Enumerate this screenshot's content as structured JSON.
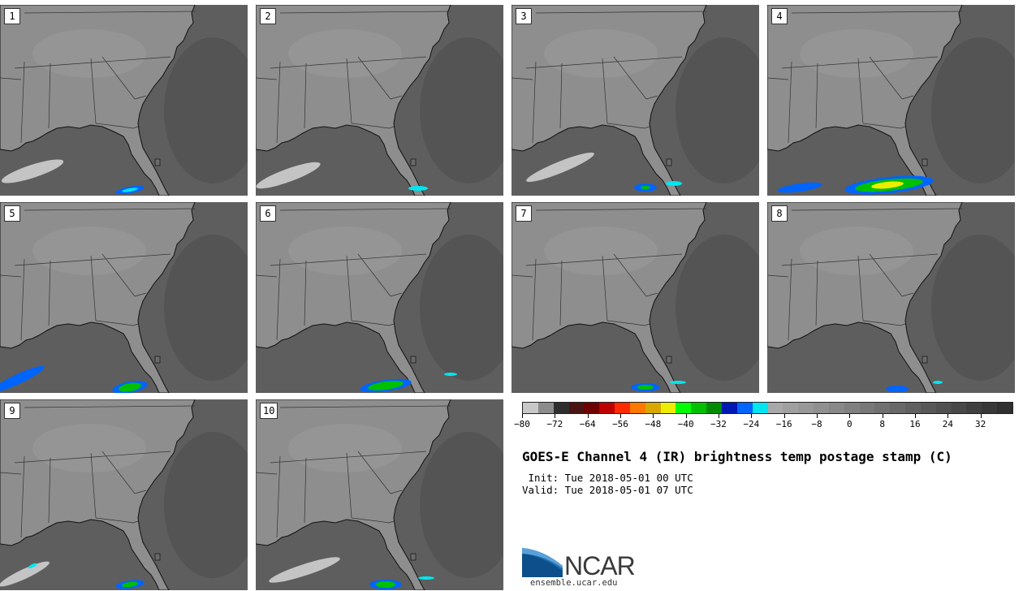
{
  "figure": {
    "title": "GOES-E Channel 4 (IR) brightness temp postage stamp (C)",
    "init_text": " Init: Tue 2018-05-01 00 UTC",
    "valid_text": "Valid: Tue 2018-05-01 07 UTC"
  },
  "panels": [
    {
      "label": "1"
    },
    {
      "label": "2"
    },
    {
      "label": "3"
    },
    {
      "label": "4"
    },
    {
      "label": "5"
    },
    {
      "label": "6"
    },
    {
      "label": "7"
    },
    {
      "label": "8"
    },
    {
      "label": "9"
    },
    {
      "label": "10"
    }
  ],
  "colorbar": {
    "min": -80,
    "max": 40,
    "tick_labels": [
      "-80",
      "-72",
      "-64",
      "-56",
      "-48",
      "-40",
      "-32",
      "-24",
      "-16",
      "-8",
      "0",
      "8",
      "16",
      "24",
      "32"
    ],
    "colors": [
      "#c8c8c8",
      "#8c8c8c",
      "#2e2e2e",
      "#4a1414",
      "#6e0000",
      "#be0000",
      "#ff2a00",
      "#ff7800",
      "#d8a800",
      "#ecec00",
      "#00ff00",
      "#00c000",
      "#008c00",
      "#0018b4",
      "#0064ff",
      "#00e6f0",
      "#a8a8a8",
      "#a0a0a0",
      "#989898",
      "#909090",
      "#888888",
      "#808080",
      "#787878",
      "#707070",
      "#686868",
      "#606060",
      "#585858",
      "#505050",
      "#484848",
      "#404040",
      "#383838",
      "#303030"
    ]
  },
  "logo": {
    "wordmark": "NCAR",
    "url": "ensemble.ucar.edu"
  },
  "map_colors": {
    "land": "#8e8e8e",
    "land_light": "#9a9a9a",
    "ocean": "#5e5e5e",
    "ocean_dark": "#545454",
    "cloud_white": "#c4c4c4",
    "cloud_cyan": "#00e6f0",
    "cloud_blue": "#0064ff",
    "cloud_green": "#00c000",
    "cloud_yellow": "#ecec00"
  }
}
